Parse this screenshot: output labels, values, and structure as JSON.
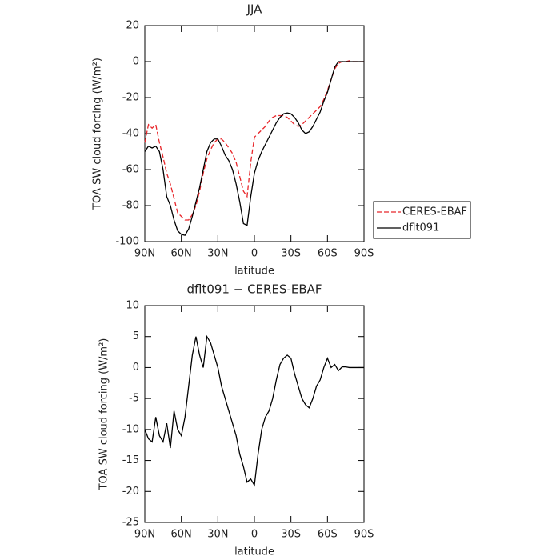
{
  "chart_data": [
    {
      "type": "line",
      "title": "JJA",
      "x_label": "latitude",
      "y_label": "TOA SW cloud forcing (W/m²)",
      "x": [
        90,
        87,
        84,
        81,
        78,
        75,
        72,
        69,
        66,
        63,
        60,
        57,
        54,
        51,
        48,
        45,
        42,
        39,
        36,
        33,
        30,
        27,
        24,
        21,
        18,
        15,
        12,
        9,
        6,
        3,
        0,
        -3,
        -6,
        -9,
        -12,
        -15,
        -18,
        -21,
        -24,
        -27,
        -30,
        -33,
        -36,
        -39,
        -42,
        -45,
        -48,
        -51,
        -54,
        -57,
        -60,
        -63,
        -66,
        -69,
        -72,
        -75,
        -78,
        -81,
        -84,
        -87,
        -90
      ],
      "series": [
        {
          "name": "CERES-EBAF",
          "color": "#e8262a",
          "line_style": "dashed",
          "values": [
            -45,
            -35,
            -37,
            -35,
            -45,
            -53,
            -62,
            -68,
            -76,
            -84,
            -86,
            -88,
            -88,
            -85,
            -80,
            -72,
            -62,
            -54,
            -49,
            -45,
            -43,
            -43,
            -45,
            -48,
            -51,
            -56,
            -64,
            -72,
            -75,
            -56,
            -42,
            -40,
            -38,
            -36,
            -33,
            -31,
            -30,
            -30,
            -30,
            -31,
            -33,
            -35,
            -36,
            -35,
            -33,
            -31,
            -29,
            -27,
            -25,
            -21,
            -16,
            -10,
            -4,
            -1,
            0,
            0,
            0.5,
            0,
            0,
            0,
            0
          ]
        },
        {
          "name": "dflt091",
          "color": "#000000",
          "line_style": "solid",
          "values": [
            -50,
            -47,
            -48,
            -47,
            -50,
            -60,
            -75,
            -80,
            -88,
            -94,
            -96,
            -96.5,
            -93,
            -86,
            -78,
            -70,
            -60,
            -50,
            -45,
            -43,
            -43,
            -47,
            -52,
            -55,
            -60,
            -68,
            -78,
            -90,
            -91,
            -75,
            -62,
            -55,
            -50,
            -46,
            -42,
            -38,
            -34,
            -31,
            -29,
            -28.5,
            -29,
            -31,
            -34,
            -38,
            -40,
            -39,
            -36,
            -32,
            -28,
            -22,
            -17,
            -10,
            -3,
            0,
            0,
            0,
            0,
            0,
            0,
            0,
            0
          ]
        }
      ],
      "xlim": [
        90,
        -90
      ],
      "xticks": [
        {
          "value": 90,
          "label": "90N"
        },
        {
          "value": 60,
          "label": "60N"
        },
        {
          "value": 30,
          "label": "30N"
        },
        0,
        {
          "value": -30,
          "label": "30S"
        },
        {
          "value": -60,
          "label": "60S"
        },
        {
          "value": -90,
          "label": "90S"
        }
      ],
      "ylim": [
        -100,
        20
      ],
      "yticks": [
        -100,
        -80,
        -60,
        -40,
        -20,
        0,
        20
      ],
      "legend": "right"
    },
    {
      "type": "line",
      "title": "dflt091 − CERES-EBAF",
      "x_label": "latitude",
      "y_label": "TOA SW cloud forcing (W/m²)",
      "x": [
        90,
        87,
        84,
        81,
        78,
        75,
        72,
        69,
        66,
        63,
        60,
        57,
        54,
        51,
        48,
        45,
        42,
        39,
        36,
        33,
        30,
        27,
        24,
        21,
        18,
        15,
        12,
        9,
        6,
        3,
        0,
        -3,
        -6,
        -9,
        -12,
        -15,
        -18,
        -21,
        -24,
        -27,
        -30,
        -33,
        -36,
        -39,
        -42,
        -45,
        -48,
        -51,
        -54,
        -57,
        -60,
        -63,
        -66,
        -69,
        -72,
        -75,
        -78,
        -81,
        -84,
        -87,
        -90
      ],
      "values": [
        -10,
        -11.5,
        -12,
        -8,
        -11,
        -12,
        -9,
        -13,
        -7,
        -10,
        -11,
        -8,
        -3,
        2,
        5,
        2,
        0,
        5,
        4,
        2,
        0,
        -3,
        -5,
        -7,
        -9,
        -11,
        -14,
        -16,
        -18.5,
        -18,
        -19,
        -14,
        -10,
        -8,
        -7,
        -5,
        -2,
        0.5,
        1.5,
        2,
        1.5,
        -1,
        -3,
        -5,
        -6,
        -6.5,
        -5,
        -3,
        -2,
        0,
        1.5,
        0,
        0.5,
        -0.5,
        0.1,
        0.1,
        0,
        0,
        0,
        0,
        0
      ],
      "color": "#000000",
      "xlim": [
        90,
        -90
      ],
      "xticks": [
        {
          "value": 90,
          "label": "90N"
        },
        {
          "value": 60,
          "label": "60N"
        },
        {
          "value": 30,
          "label": "30N"
        },
        0,
        {
          "value": -30,
          "label": "30S"
        },
        {
          "value": -60,
          "label": "60S"
        },
        {
          "value": -90,
          "label": "90S"
        }
      ],
      "ylim": [
        -25,
        10
      ],
      "yticks": [
        -25,
        -20,
        -15,
        -10,
        -5,
        0,
        5,
        10
      ]
    }
  ]
}
